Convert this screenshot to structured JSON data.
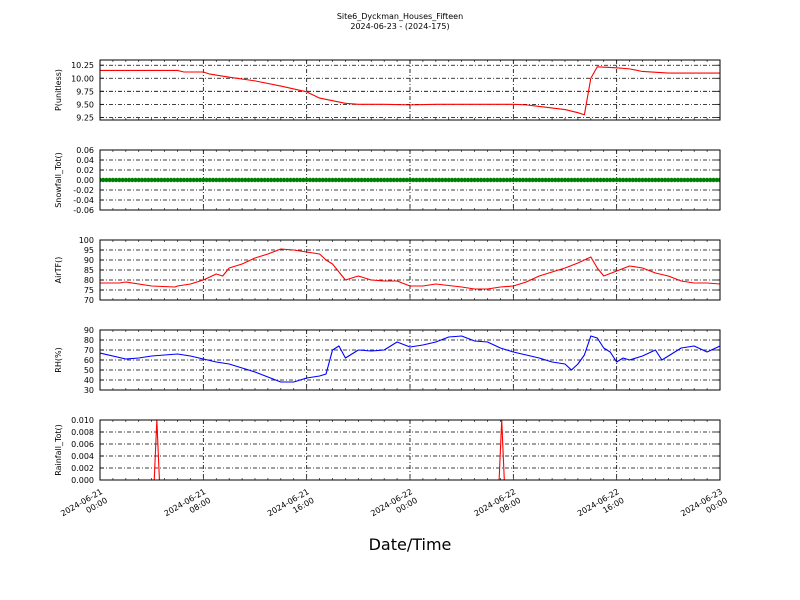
{
  "title": "Site6_Dyckman_Houses_Fifteen",
  "subtitle": "2024-06-23 - (2024-175)",
  "xlabel": "Date/Time",
  "x_ticks": [
    {
      "hours": 0,
      "line1": "2024-06-21",
      "line2": "00:00"
    },
    {
      "hours": 8,
      "line1": "2024-06-21",
      "line2": "08:00"
    },
    {
      "hours": 16,
      "line1": "2024-06-21",
      "line2": "16:00"
    },
    {
      "hours": 24,
      "line1": "2024-06-22",
      "line2": "00:00"
    },
    {
      "hours": 32,
      "line1": "2024-06-22",
      "line2": "08:00"
    },
    {
      "hours": 40,
      "line1": "2024-06-22",
      "line2": "16:00"
    },
    {
      "hours": 48,
      "line1": "2024-06-23",
      "line2": "00:00"
    }
  ],
  "chart_data": [
    {
      "type": "line",
      "ylabel": "P(unitless)",
      "color": "#ff0000",
      "ylim": [
        9.2,
        10.35
      ],
      "yticks": [
        "10.25",
        "10.00",
        "9.75",
        "9.50",
        "9.25"
      ],
      "ytick_values": [
        10.25,
        10.0,
        9.75,
        9.5,
        9.25
      ],
      "x_unit": "hours since 2024-06-21 00:00",
      "x": [
        0,
        6,
        6.5,
        8,
        8.5,
        10,
        12,
        14,
        16,
        17,
        18,
        19,
        20,
        22,
        24,
        26,
        28,
        30,
        32,
        33,
        34,
        36,
        37,
        37.5,
        38,
        38.5,
        40,
        41,
        42,
        44,
        46,
        48
      ],
      "y": [
        10.15,
        10.15,
        10.12,
        10.12,
        10.08,
        10.02,
        9.95,
        9.85,
        9.74,
        9.62,
        9.57,
        9.52,
        9.5,
        9.5,
        9.49,
        9.5,
        9.5,
        9.5,
        9.5,
        9.49,
        9.46,
        9.4,
        9.34,
        9.3,
        10.0,
        10.22,
        10.2,
        10.18,
        10.13,
        10.1,
        10.1,
        10.1
      ]
    },
    {
      "type": "scatter",
      "ylabel": "Snowfall_Tot()",
      "color": "#008000",
      "ylim": [
        -0.06,
        0.06
      ],
      "yticks": [
        "0.06",
        "0.04",
        "0.02",
        "0.00",
        "-0.02",
        "-0.04",
        "-0.06"
      ],
      "ytick_values": [
        0.06,
        0.04,
        0.02,
        0.0,
        -0.02,
        -0.04,
        -0.06
      ],
      "x_unit": "hours since 2024-06-21 00:00",
      "x_range": [
        0,
        48
      ],
      "y_constant": 0.0
    },
    {
      "type": "line",
      "ylabel": "AirTF()",
      "color": "#ff0000",
      "ylim": [
        70,
        100
      ],
      "yticks": [
        "100",
        "95",
        "90",
        "85",
        "80",
        "75",
        "70"
      ],
      "ytick_values": [
        100,
        95,
        90,
        85,
        80,
        75,
        70
      ],
      "x_unit": "hours since 2024-06-21 00:00",
      "x": [
        0,
        1.5,
        2,
        4,
        5.8,
        6,
        7,
        8,
        9,
        9.5,
        10,
        11,
        12,
        13,
        14,
        15,
        16,
        17,
        17.5,
        18,
        19,
        20,
        21,
        22,
        23,
        24,
        25,
        26,
        28,
        29,
        30,
        31,
        32,
        33,
        34,
        35,
        36,
        37,
        38,
        38.5,
        39,
        40,
        41,
        42,
        43,
        44,
        45,
        46,
        47,
        48
      ],
      "y": [
        78.5,
        78.5,
        79,
        77,
        76.5,
        77,
        78,
        80,
        83,
        82,
        86,
        88,
        91,
        93,
        95.5,
        95,
        94,
        93,
        90,
        88,
        80,
        82,
        80,
        79.5,
        79.5,
        77,
        77,
        78,
        76.5,
        75.5,
        75.5,
        76.5,
        77,
        79,
        82,
        84,
        86,
        88.5,
        91.5,
        86,
        82,
        84.5,
        87,
        86,
        83.5,
        82,
        79.5,
        78.5,
        78.5,
        78
      ]
    },
    {
      "type": "line",
      "ylabel": "RH(%)",
      "color": "#0000ff",
      "ylim": [
        30,
        90
      ],
      "yticks": [
        "90",
        "80",
        "70",
        "60",
        "50",
        "40",
        "30"
      ],
      "ytick_values": [
        90,
        80,
        70,
        60,
        50,
        40,
        30
      ],
      "x_unit": "hours since 2024-06-21 00:00",
      "x": [
        0,
        2,
        3,
        4,
        5,
        6,
        7,
        8,
        9,
        10,
        11,
        12,
        13,
        14,
        15,
        16,
        17,
        17.5,
        18,
        18.5,
        19,
        19.5,
        20,
        21,
        22,
        23,
        24,
        25,
        26,
        27,
        28,
        29,
        30,
        31,
        32,
        33,
        34,
        35,
        36,
        36.5,
        37,
        37.5,
        38,
        38.5,
        39,
        39.5,
        40,
        40.5,
        41,
        42,
        43,
        43.5,
        44,
        45,
        46,
        47,
        48
      ],
      "y": [
        67,
        61,
        62,
        64,
        65,
        66,
        64,
        61,
        58,
        56,
        52,
        48,
        43,
        38,
        38,
        42,
        44,
        46,
        70,
        74,
        62,
        66,
        70,
        69,
        70,
        78,
        73,
        75,
        78,
        83,
        84,
        79,
        78,
        72,
        68,
        65,
        62,
        58,
        56,
        50,
        56,
        65,
        84,
        82,
        72,
        68,
        58,
        62,
        60,
        64,
        70,
        60,
        64,
        72,
        74,
        68,
        74
      ]
    },
    {
      "type": "line",
      "ylabel": "Rainfall_Tot()",
      "color": "#ff0000",
      "ylim": [
        0,
        0.01
      ],
      "yticks": [
        "0.010",
        "0.008",
        "0.006",
        "0.004",
        "0.002",
        "0.000"
      ],
      "ytick_values": [
        0.01,
        0.008,
        0.006,
        0.004,
        0.002,
        0.0
      ],
      "x_unit": "hours since 2024-06-21 00:00",
      "x": [
        0,
        4.2,
        4.4,
        4.6,
        30.9,
        31.1,
        31.3,
        48
      ],
      "y": [
        0,
        0,
        0.01,
        0,
        0,
        0.01,
        0,
        0
      ]
    }
  ]
}
